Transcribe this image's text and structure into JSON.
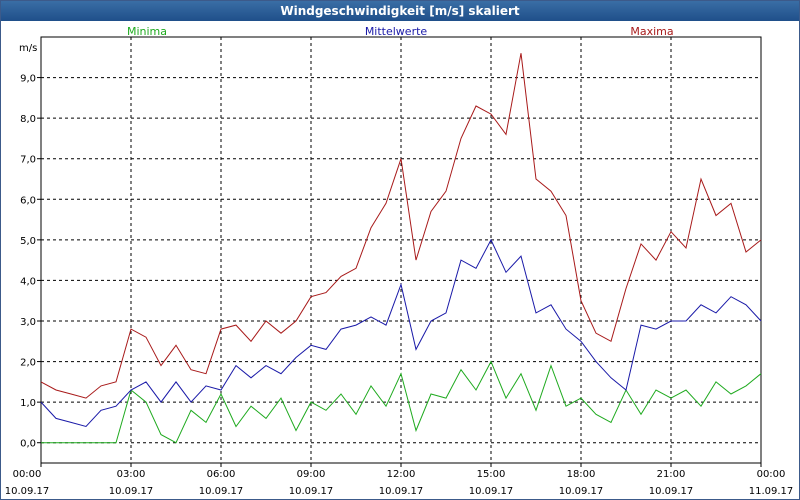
{
  "window": {
    "title": "Windgeschwindigkeit [m/s] skaliert"
  },
  "chart_data": {
    "type": "line",
    "title": "Windgeschwindigkeit [m/s] skaliert",
    "ylabel": "m/s",
    "xlabel": "",
    "ylim": [
      -0.5,
      10.0
    ],
    "xlim": [
      0,
      24
    ],
    "grid": true,
    "legend_position": "top",
    "yticks": [
      {
        "value": 0.0,
        "label": "0,0"
      },
      {
        "value": 1.0,
        "label": "1,0"
      },
      {
        "value": 2.0,
        "label": "2,0"
      },
      {
        "value": 3.0,
        "label": "3,0"
      },
      {
        "value": 4.0,
        "label": "4,0"
      },
      {
        "value": 5.0,
        "label": "5,0"
      },
      {
        "value": 6.0,
        "label": "6,0"
      },
      {
        "value": 7.0,
        "label": "7,0"
      },
      {
        "value": 8.0,
        "label": "8,0"
      },
      {
        "value": 9.0,
        "label": "9,0"
      }
    ],
    "xticks": [
      {
        "value": 0,
        "time": "00:00",
        "date": "10.09.17"
      },
      {
        "value": 3,
        "time": "03:00",
        "date": "10.09.17"
      },
      {
        "value": 6,
        "time": "06:00",
        "date": "10.09.17"
      },
      {
        "value": 9,
        "time": "09:00",
        "date": "10.09.17"
      },
      {
        "value": 12,
        "time": "12:00",
        "date": "10.09.17"
      },
      {
        "value": 15,
        "time": "15:00",
        "date": "10.09.17"
      },
      {
        "value": 18,
        "time": "18:00",
        "date": "10.09.17"
      },
      {
        "value": 21,
        "time": "21:00",
        "date": "10.09.17"
      },
      {
        "value": 24,
        "time": "00:00",
        "date": "11.09.17"
      }
    ],
    "series": [
      {
        "name": "Minima",
        "color": "#1faa1f",
        "x": [
          0,
          0.5,
          1,
          1.5,
          2,
          2.5,
          3,
          3.5,
          4,
          4.5,
          5,
          5.5,
          6,
          6.5,
          7,
          7.5,
          8,
          8.5,
          9,
          9.5,
          10,
          10.5,
          11,
          11.5,
          12,
          12.5,
          13,
          13.5,
          14,
          14.5,
          15,
          15.5,
          16,
          16.5,
          17,
          17.5,
          18,
          18.5,
          19,
          19.5,
          20,
          20.5,
          21,
          21.5,
          22,
          22.5,
          23,
          23.5,
          24
        ],
        "values": [
          0.0,
          0.0,
          0.0,
          0.0,
          0.0,
          0.0,
          1.3,
          1.0,
          0.2,
          0.0,
          0.8,
          0.5,
          1.2,
          0.4,
          0.9,
          0.6,
          1.1,
          0.3,
          1.0,
          0.8,
          1.2,
          0.7,
          1.4,
          0.9,
          1.7,
          0.3,
          1.2,
          1.1,
          1.8,
          1.3,
          2.0,
          1.1,
          1.7,
          0.8,
          1.9,
          0.9,
          1.1,
          0.7,
          0.5,
          1.3,
          0.7,
          1.3,
          1.1,
          1.3,
          0.9,
          1.5,
          1.2,
          1.4,
          1.7
        ]
      },
      {
        "name": "Mittelwerte",
        "color": "#1a1aa8",
        "x": [
          0,
          0.5,
          1,
          1.5,
          2,
          2.5,
          3,
          3.5,
          4,
          4.5,
          5,
          5.5,
          6,
          6.5,
          7,
          7.5,
          8,
          8.5,
          9,
          9.5,
          10,
          10.5,
          11,
          11.5,
          12,
          12.5,
          13,
          13.5,
          14,
          14.5,
          15,
          15.5,
          16,
          16.5,
          17,
          17.5,
          18,
          18.5,
          19,
          19.5,
          20,
          20.5,
          21,
          21.5,
          22,
          22.5,
          23,
          23.5,
          24
        ],
        "values": [
          1.0,
          0.6,
          0.5,
          0.4,
          0.8,
          0.9,
          1.3,
          1.5,
          1.0,
          1.5,
          1.0,
          1.4,
          1.3,
          1.9,
          1.6,
          1.9,
          1.7,
          2.1,
          2.4,
          2.3,
          2.8,
          2.9,
          3.1,
          2.9,
          3.9,
          2.3,
          3.0,
          3.2,
          4.5,
          4.3,
          5.0,
          4.2,
          4.6,
          3.2,
          3.4,
          2.8,
          2.5,
          2.0,
          1.6,
          1.3,
          2.9,
          2.8,
          3.0,
          3.0,
          3.4,
          3.2,
          3.6,
          3.4,
          3.0
        ]
      },
      {
        "name": "Maxima",
        "color": "#a81a1a",
        "x": [
          0,
          0.5,
          1,
          1.5,
          2,
          2.5,
          3,
          3.5,
          4,
          4.5,
          5,
          5.5,
          6,
          6.5,
          7,
          7.5,
          8,
          8.5,
          9,
          9.5,
          10,
          10.5,
          11,
          11.5,
          12,
          12.5,
          13,
          13.5,
          14,
          14.5,
          15,
          15.5,
          16,
          16.5,
          17,
          17.5,
          18,
          18.5,
          19,
          19.5,
          20,
          20.5,
          21,
          21.5,
          22,
          22.5,
          23,
          23.5,
          24
        ],
        "values": [
          1.5,
          1.3,
          1.2,
          1.1,
          1.4,
          1.5,
          2.8,
          2.6,
          1.9,
          2.4,
          1.8,
          1.7,
          2.8,
          2.9,
          2.5,
          3.0,
          2.7,
          3.0,
          3.6,
          3.7,
          4.1,
          4.3,
          5.3,
          5.9,
          7.0,
          4.5,
          5.7,
          6.2,
          7.5,
          8.3,
          8.1,
          7.6,
          9.6,
          6.5,
          6.2,
          5.6,
          3.5,
          2.7,
          2.5,
          3.8,
          4.9,
          4.5,
          5.2,
          4.8,
          6.5,
          5.6,
          5.9,
          4.7,
          5.0
        ]
      }
    ]
  }
}
